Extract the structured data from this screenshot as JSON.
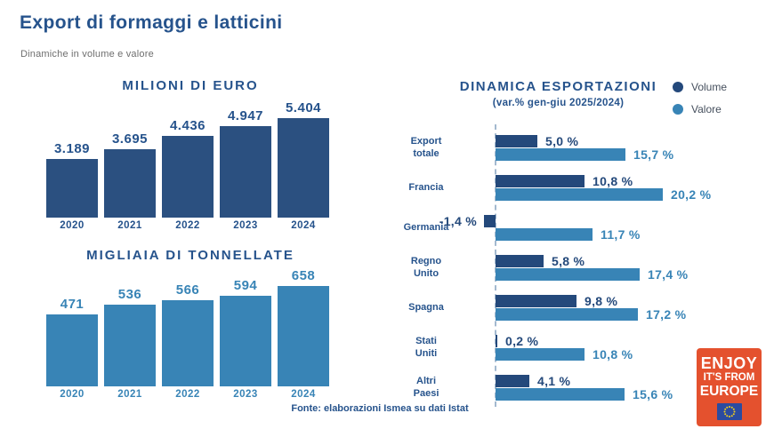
{
  "page": {
    "title": "Export di formaggi e latticini",
    "subtitle": "Dinamiche in volume e valore",
    "source": "Fonte: elaborazioni Ismea su dati Istat"
  },
  "colors": {
    "title_blue": "#26538c",
    "subtitle_gray": "#6e6e6e",
    "dark_blue_bars": "#2b5080",
    "dark_blue_hbars": "#24497b",
    "light_blue_bars": "#3884b6",
    "legend_text": "#454f5d",
    "axis_dash": "#a3b9cf",
    "logo_background": "#e4512e",
    "eu_flag_blue": "#2b4ba0",
    "eu_flag_star_yellow": "#f7d117"
  },
  "logo": {
    "line1": "ENJOY",
    "line2": "IT'S FROM",
    "line3": "EUROPE"
  },
  "chart_data": [
    {
      "type": "bar",
      "title": "MILIONI DI EURO",
      "categories": [
        "2020",
        "2021",
        "2022",
        "2023",
        "2024"
      ],
      "values": [
        3189,
        3695,
        4436,
        4947,
        5404
      ],
      "value_labels": [
        "3.189",
        "3.695",
        "4.436",
        "4.947",
        "5.404"
      ],
      "bar_color": "#2b5080",
      "label_color": "#26538c",
      "ylim": [
        0,
        5600
      ],
      "grid": false
    },
    {
      "type": "bar",
      "title": "MIGLIAIA DI TONNELLATE",
      "categories": [
        "2020",
        "2021",
        "2022",
        "2023",
        "2024"
      ],
      "values": [
        471,
        536,
        566,
        594,
        658
      ],
      "value_labels": [
        "471",
        "536",
        "566",
        "594",
        "658"
      ],
      "bar_color": "#3884b6",
      "label_color": "#3884b6",
      "ylim": [
        0,
        700
      ],
      "grid": false
    },
    {
      "type": "bar-horizontal-grouped",
      "title": "DINAMICA ESPORTAZIONI",
      "subtitle": "(var.% gen-giu 2025/2024)",
      "categories": [
        "Export\ntotale",
        "Francia",
        "Germania",
        "Regno\nUnito",
        "Spagna",
        "Stati\nUniti",
        "Altri\nPaesi"
      ],
      "series": [
        {
          "name": "Volume",
          "bar_color": "#24497b",
          "label_color": "#24497b",
          "values": [
            5.0,
            10.8,
            -1.4,
            5.8,
            9.8,
            0.2,
            4.1
          ],
          "value_labels": [
            "5,0 %",
            "10,8 %",
            "-1,4 %",
            "5,8 %",
            "9,8 %",
            "0,2 %",
            "4,1 %"
          ]
        },
        {
          "name": "Valore",
          "bar_color": "#3884b6",
          "label_color": "#3884b6",
          "values": [
            15.7,
            20.2,
            11.7,
            17.4,
            17.2,
            10.8,
            15.6
          ],
          "value_labels": [
            "15,7 %",
            "20,2 %",
            "11,7 %",
            "17,4 %",
            "17,2 %",
            "10,8 %",
            "15,6 %"
          ]
        }
      ],
      "xlim": [
        -2,
        22
      ],
      "legend_position": "top-right",
      "axis_style": "dashed-zero-line",
      "grid": false
    }
  ]
}
